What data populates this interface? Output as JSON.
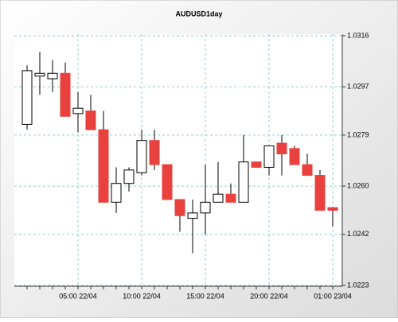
{
  "chart_data": {
    "type": "candlestick",
    "title": "AUDUSD1day",
    "categories": [
      null,
      null,
      null,
      null,
      "05:00 22/04",
      null,
      null,
      null,
      null,
      "10:00 22/04",
      null,
      null,
      null,
      null,
      "15:00 22/04",
      null,
      null,
      null,
      null,
      "20:00 22/04",
      null,
      null,
      null,
      null,
      "01:00 23/04"
    ],
    "open": [
      1.0283,
      1.0301,
      1.03,
      1.0302,
      1.0287,
      1.0288,
      1.0281,
      1.0254,
      1.0261,
      1.0265,
      1.0277,
      1.0268,
      1.0255,
      1.0248,
      1.025,
      1.0254,
      1.0257,
      1.0254,
      1.0269,
      1.0267,
      1.0276,
      1.0274,
      1.0268,
      1.0264,
      1.0252
    ],
    "high": [
      1.0305,
      1.031,
      1.0307,
      1.0306,
      1.0295,
      1.0294,
      1.0288,
      1.0267,
      1.0267,
      1.0281,
      1.0281,
      1.0268,
      1.0255,
      1.0255,
      1.0268,
      1.0269,
      1.0261,
      1.0279,
      1.0269,
      1.0275,
      1.0279,
      1.0275,
      1.0272,
      1.0266,
      1.0252
    ],
    "low": [
      1.0281,
      1.0294,
      1.0295,
      1.0286,
      1.028,
      1.0281,
      1.0254,
      1.025,
      1.0258,
      1.0264,
      1.0266,
      1.0255,
      1.0243,
      1.0235,
      1.0242,
      1.0254,
      1.0254,
      1.0254,
      1.0267,
      1.0264,
      1.0264,
      1.0268,
      1.0264,
      1.0251,
      1.0245
    ],
    "close": [
      1.0303,
      1.0302,
      1.0302,
      1.0286,
      1.0289,
      1.0281,
      1.0254,
      1.0261,
      1.0266,
      1.0277,
      1.0268,
      1.0255,
      1.0249,
      1.025,
      1.0254,
      1.0257,
      1.0254,
      1.0269,
      1.0267,
      1.0275,
      1.0272,
      1.0268,
      1.0264,
      1.0251,
      1.0251
    ],
    "up_color": "#ffffff",
    "down_color": "#e8413e",
    "ylim": [
      1.0223,
      1.0316
    ],
    "yticks": [
      1.0223,
      1.0242,
      {
        "value": 1.026,
        "label": "1.0260"
      },
      1.0279,
      1.0297,
      1.0316
    ],
    "grid": true
  }
}
